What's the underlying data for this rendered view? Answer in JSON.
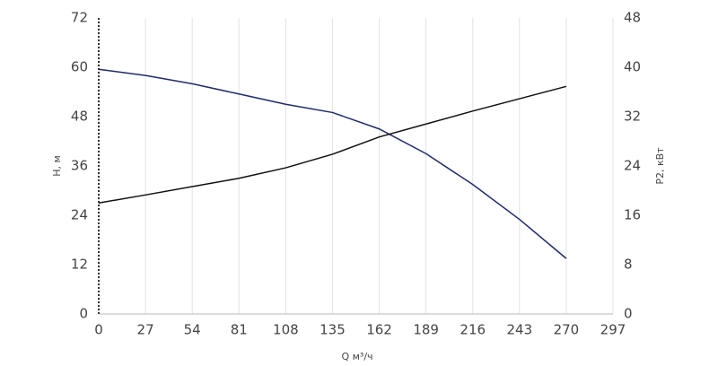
{
  "chart_data": {
    "type": "line",
    "x_label": "Q м³/ч",
    "y_label": "H, м",
    "y2_label": "P2, кВт",
    "x": [
      0,
      27,
      54,
      81,
      108,
      135,
      162,
      189,
      216,
      243,
      270
    ],
    "xlim": [
      0,
      297
    ],
    "xticks": [
      0,
      27,
      54,
      81,
      108,
      135,
      162,
      189,
      216,
      243,
      270,
      297
    ],
    "ylim": [
      0,
      72
    ],
    "yticks": [
      0,
      12,
      24,
      36,
      48,
      60,
      72
    ],
    "y2lim": [
      0,
      48
    ],
    "y2ticks": [
      0,
      8,
      16,
      24,
      32,
      40,
      48
    ],
    "grid": true,
    "series": [
      {
        "color": "#1f2a6b",
        "values": [
          59.5,
          58,
          56,
          53.5,
          51,
          49,
          45,
          39,
          31.5,
          23,
          13.5
        ]
      },
      {
        "color": "#111111",
        "axis": "y2",
        "values": [
          18,
          19.3,
          20.65,
          22,
          23.7,
          25.9,
          28.7,
          30.8,
          32.9,
          34.9,
          36.9
        ]
      }
    ]
  }
}
